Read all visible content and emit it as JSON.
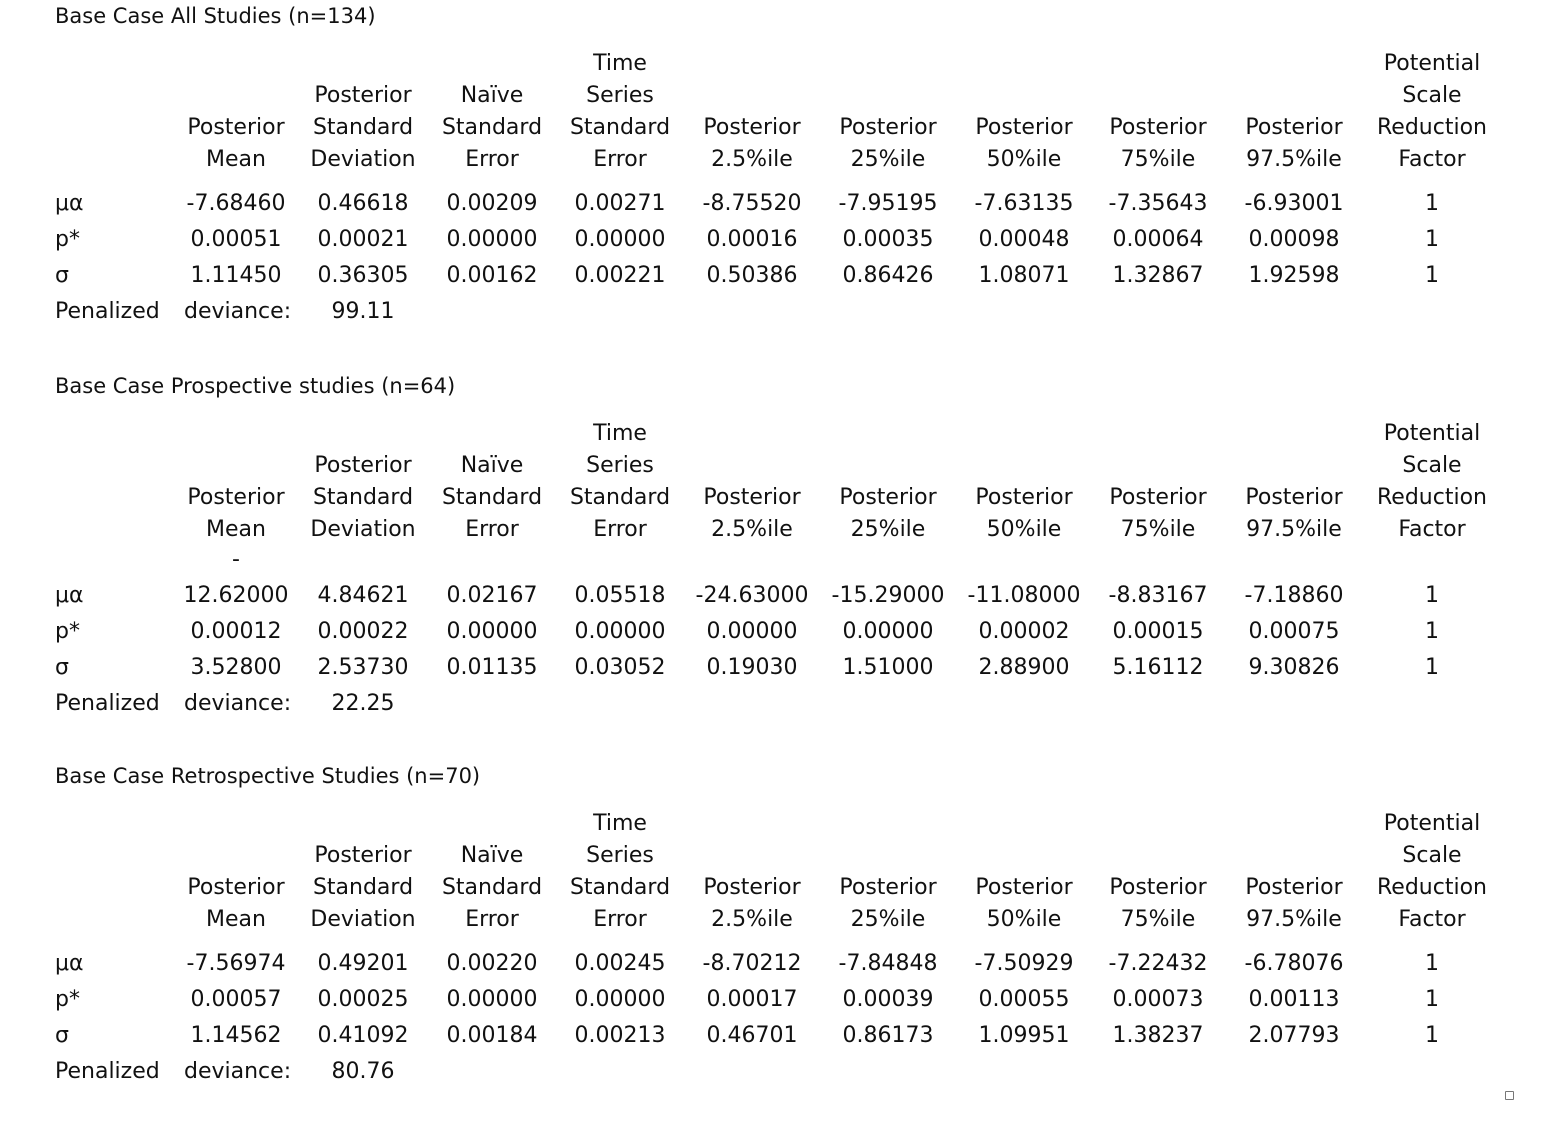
{
  "columns": [
    [
      "Posterior",
      "Mean"
    ],
    [
      "Posterior",
      "Standard",
      "Deviation"
    ],
    [
      "Naïve",
      "Standard",
      "Error"
    ],
    [
      "Time",
      "Series",
      "Standard",
      "Error"
    ],
    [
      "Posterior",
      "2.5%ile"
    ],
    [
      "Posterior",
      "25%ile"
    ],
    [
      "Posterior",
      "50%ile"
    ],
    [
      "Posterior",
      "75%ile"
    ],
    [
      "Posterior",
      "97.5%ile"
    ],
    [
      "Potential",
      "Scale",
      "Reduction",
      "Factor"
    ]
  ],
  "row_labels": [
    "μα",
    "p*",
    "σ"
  ],
  "penalized_label": "Penalized",
  "deviance_label": "deviance:",
  "sections": [
    {
      "title": "Base Case All Studies (n=134)",
      "rows": [
        [
          "-7.68460",
          "0.46618",
          "0.00209",
          "0.00271",
          "-8.75520",
          "-7.95195",
          "-7.63135",
          "-7.35643",
          "-6.93001",
          "1"
        ],
        [
          "0.00051",
          "0.00021",
          "0.00000",
          "0.00000",
          "0.00016",
          "0.00035",
          "0.00048",
          "0.00064",
          "0.00098",
          "1"
        ],
        [
          "1.11450",
          "0.36305",
          "0.00162",
          "0.00221",
          "0.50386",
          "0.86426",
          "1.08071",
          "1.32867",
          "1.92598",
          "1"
        ]
      ],
      "deviance": "99.11"
    },
    {
      "title": "Base Case Prospective studies (n=64)",
      "mean_prefix": "-",
      "rows": [
        [
          "12.62000",
          "4.84621",
          "0.02167",
          "0.05518",
          "-24.63000",
          "-15.29000",
          "-11.08000",
          "-8.83167",
          "-7.18860",
          "1"
        ],
        [
          "0.00012",
          "0.00022",
          "0.00000",
          "0.00000",
          "0.00000",
          "0.00000",
          "0.00002",
          "0.00015",
          "0.00075",
          "1"
        ],
        [
          "3.52800",
          "2.53730",
          "0.01135",
          "0.03052",
          "0.19030",
          "1.51000",
          "2.88900",
          "5.16112",
          "9.30826",
          "1"
        ]
      ],
      "deviance": "22.25"
    },
    {
      "title": "Base Case Retrospective Studies (n=70)",
      "rows": [
        [
          "-7.56974",
          "0.49201",
          "0.00220",
          "0.00245",
          "-8.70212",
          "-7.84848",
          "-7.50929",
          "-7.22432",
          "-6.78076",
          "1"
        ],
        [
          "0.00057",
          "0.00025",
          "0.00000",
          "0.00000",
          "0.00017",
          "0.00039",
          "0.00055",
          "0.00073",
          "0.00113",
          "1"
        ],
        [
          "1.14562",
          "0.41092",
          "0.00184",
          "0.00213",
          "0.46701",
          "0.86173",
          "1.09951",
          "1.38237",
          "2.07793",
          "1"
        ]
      ],
      "deviance": "80.76"
    }
  ]
}
